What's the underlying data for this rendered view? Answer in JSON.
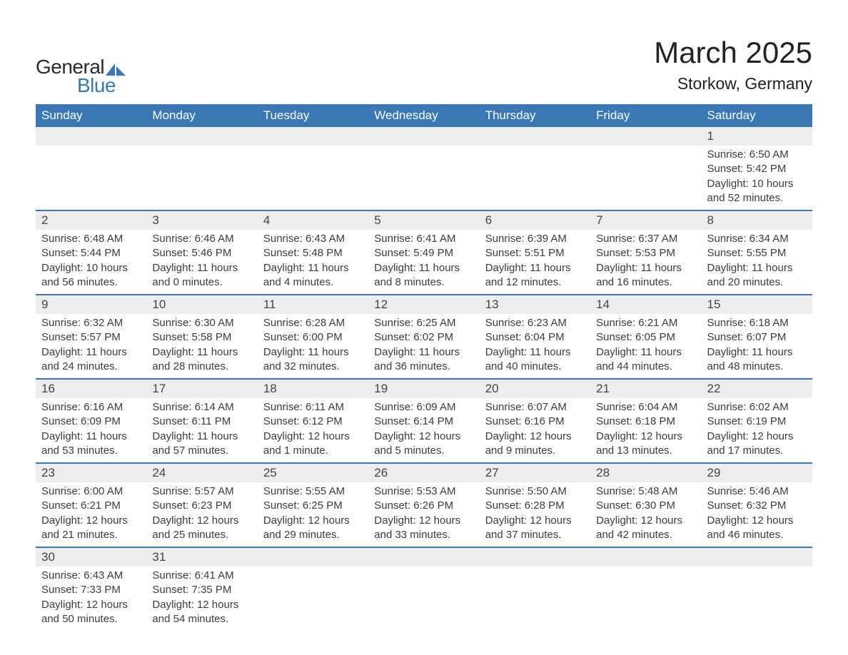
{
  "brand": {
    "text_general": "General",
    "text_blue": "Blue",
    "icon_color": "#3a78b5"
  },
  "header": {
    "month_title": "March 2025",
    "location": "Storkow, Germany"
  },
  "colors": {
    "header_bg": "#3a78b5",
    "header_text": "#ffffff",
    "daynum_bg": "#ededed",
    "row_divider": "#3a78b5",
    "body_text": "#3c3c3c",
    "page_bg": "#ffffff"
  },
  "typography": {
    "title_fontsize": 42,
    "location_fontsize": 23,
    "header_fontsize": 17,
    "daynum_fontsize": 17,
    "detail_fontsize": 15
  },
  "day_headers": [
    "Sunday",
    "Monday",
    "Tuesday",
    "Wednesday",
    "Thursday",
    "Friday",
    "Saturday"
  ],
  "weeks": [
    [
      null,
      null,
      null,
      null,
      null,
      null,
      {
        "n": "1",
        "sr": "Sunrise: 6:50 AM",
        "ss": "Sunset: 5:42 PM",
        "d1": "Daylight: 10 hours",
        "d2": "and 52 minutes."
      }
    ],
    [
      {
        "n": "2",
        "sr": "Sunrise: 6:48 AM",
        "ss": "Sunset: 5:44 PM",
        "d1": "Daylight: 10 hours",
        "d2": "and 56 minutes."
      },
      {
        "n": "3",
        "sr": "Sunrise: 6:46 AM",
        "ss": "Sunset: 5:46 PM",
        "d1": "Daylight: 11 hours",
        "d2": "and 0 minutes."
      },
      {
        "n": "4",
        "sr": "Sunrise: 6:43 AM",
        "ss": "Sunset: 5:48 PM",
        "d1": "Daylight: 11 hours",
        "d2": "and 4 minutes."
      },
      {
        "n": "5",
        "sr": "Sunrise: 6:41 AM",
        "ss": "Sunset: 5:49 PM",
        "d1": "Daylight: 11 hours",
        "d2": "and 8 minutes."
      },
      {
        "n": "6",
        "sr": "Sunrise: 6:39 AM",
        "ss": "Sunset: 5:51 PM",
        "d1": "Daylight: 11 hours",
        "d2": "and 12 minutes."
      },
      {
        "n": "7",
        "sr": "Sunrise: 6:37 AM",
        "ss": "Sunset: 5:53 PM",
        "d1": "Daylight: 11 hours",
        "d2": "and 16 minutes."
      },
      {
        "n": "8",
        "sr": "Sunrise: 6:34 AM",
        "ss": "Sunset: 5:55 PM",
        "d1": "Daylight: 11 hours",
        "d2": "and 20 minutes."
      }
    ],
    [
      {
        "n": "9",
        "sr": "Sunrise: 6:32 AM",
        "ss": "Sunset: 5:57 PM",
        "d1": "Daylight: 11 hours",
        "d2": "and 24 minutes."
      },
      {
        "n": "10",
        "sr": "Sunrise: 6:30 AM",
        "ss": "Sunset: 5:58 PM",
        "d1": "Daylight: 11 hours",
        "d2": "and 28 minutes."
      },
      {
        "n": "11",
        "sr": "Sunrise: 6:28 AM",
        "ss": "Sunset: 6:00 PM",
        "d1": "Daylight: 11 hours",
        "d2": "and 32 minutes."
      },
      {
        "n": "12",
        "sr": "Sunrise: 6:25 AM",
        "ss": "Sunset: 6:02 PM",
        "d1": "Daylight: 11 hours",
        "d2": "and 36 minutes."
      },
      {
        "n": "13",
        "sr": "Sunrise: 6:23 AM",
        "ss": "Sunset: 6:04 PM",
        "d1": "Daylight: 11 hours",
        "d2": "and 40 minutes."
      },
      {
        "n": "14",
        "sr": "Sunrise: 6:21 AM",
        "ss": "Sunset: 6:05 PM",
        "d1": "Daylight: 11 hours",
        "d2": "and 44 minutes."
      },
      {
        "n": "15",
        "sr": "Sunrise: 6:18 AM",
        "ss": "Sunset: 6:07 PM",
        "d1": "Daylight: 11 hours",
        "d2": "and 48 minutes."
      }
    ],
    [
      {
        "n": "16",
        "sr": "Sunrise: 6:16 AM",
        "ss": "Sunset: 6:09 PM",
        "d1": "Daylight: 11 hours",
        "d2": "and 53 minutes."
      },
      {
        "n": "17",
        "sr": "Sunrise: 6:14 AM",
        "ss": "Sunset: 6:11 PM",
        "d1": "Daylight: 11 hours",
        "d2": "and 57 minutes."
      },
      {
        "n": "18",
        "sr": "Sunrise: 6:11 AM",
        "ss": "Sunset: 6:12 PM",
        "d1": "Daylight: 12 hours",
        "d2": "and 1 minute."
      },
      {
        "n": "19",
        "sr": "Sunrise: 6:09 AM",
        "ss": "Sunset: 6:14 PM",
        "d1": "Daylight: 12 hours",
        "d2": "and 5 minutes."
      },
      {
        "n": "20",
        "sr": "Sunrise: 6:07 AM",
        "ss": "Sunset: 6:16 PM",
        "d1": "Daylight: 12 hours",
        "d2": "and 9 minutes."
      },
      {
        "n": "21",
        "sr": "Sunrise: 6:04 AM",
        "ss": "Sunset: 6:18 PM",
        "d1": "Daylight: 12 hours",
        "d2": "and 13 minutes."
      },
      {
        "n": "22",
        "sr": "Sunrise: 6:02 AM",
        "ss": "Sunset: 6:19 PM",
        "d1": "Daylight: 12 hours",
        "d2": "and 17 minutes."
      }
    ],
    [
      {
        "n": "23",
        "sr": "Sunrise: 6:00 AM",
        "ss": "Sunset: 6:21 PM",
        "d1": "Daylight: 12 hours",
        "d2": "and 21 minutes."
      },
      {
        "n": "24",
        "sr": "Sunrise: 5:57 AM",
        "ss": "Sunset: 6:23 PM",
        "d1": "Daylight: 12 hours",
        "d2": "and 25 minutes."
      },
      {
        "n": "25",
        "sr": "Sunrise: 5:55 AM",
        "ss": "Sunset: 6:25 PM",
        "d1": "Daylight: 12 hours",
        "d2": "and 29 minutes."
      },
      {
        "n": "26",
        "sr": "Sunrise: 5:53 AM",
        "ss": "Sunset: 6:26 PM",
        "d1": "Daylight: 12 hours",
        "d2": "and 33 minutes."
      },
      {
        "n": "27",
        "sr": "Sunrise: 5:50 AM",
        "ss": "Sunset: 6:28 PM",
        "d1": "Daylight: 12 hours",
        "d2": "and 37 minutes."
      },
      {
        "n": "28",
        "sr": "Sunrise: 5:48 AM",
        "ss": "Sunset: 6:30 PM",
        "d1": "Daylight: 12 hours",
        "d2": "and 42 minutes."
      },
      {
        "n": "29",
        "sr": "Sunrise: 5:46 AM",
        "ss": "Sunset: 6:32 PM",
        "d1": "Daylight: 12 hours",
        "d2": "and 46 minutes."
      }
    ],
    [
      {
        "n": "30",
        "sr": "Sunrise: 6:43 AM",
        "ss": "Sunset: 7:33 PM",
        "d1": "Daylight: 12 hours",
        "d2": "and 50 minutes."
      },
      {
        "n": "31",
        "sr": "Sunrise: 6:41 AM",
        "ss": "Sunset: 7:35 PM",
        "d1": "Daylight: 12 hours",
        "d2": "and 54 minutes."
      },
      null,
      null,
      null,
      null,
      null
    ]
  ]
}
